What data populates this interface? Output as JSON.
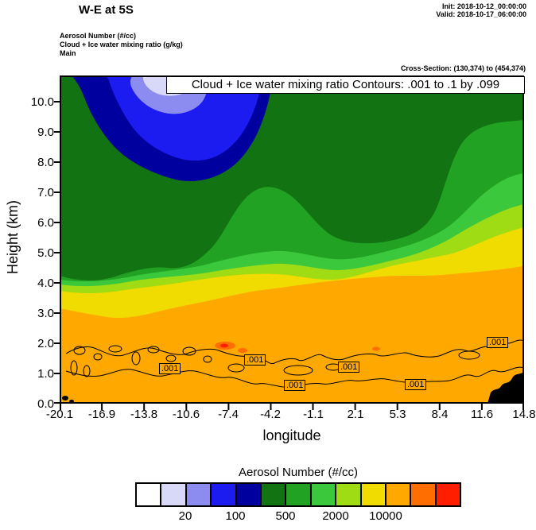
{
  "header": {
    "title": "W-E at 5S",
    "init": "Init: 2018-10-12_00:00:00",
    "valid": "Valid: 2018-10-17_06:00:00",
    "field1": "Aerosol Number  (#/cc)",
    "field2": "Cloud + Ice water mixing ratio  (g/kg)",
    "field3": "Main",
    "cross_section": "Cross-Section: (130,374) to (454,374)"
  },
  "plot": {
    "banner": "Cloud + Ice water mixing ratio Contours: .001 to .1 by .099",
    "contour_label": ".001"
  },
  "axes": {
    "y": {
      "label": "Height (km)",
      "ticks": [
        "10.0",
        "9.0",
        "8.0",
        "7.0",
        "6.0",
        "5.0",
        "4.0",
        "3.0",
        "2.0",
        "1.0",
        "0.0"
      ]
    },
    "x": {
      "label": "longitude",
      "ticks": [
        "-20.1",
        "-16.9",
        "-13.8",
        "-10.6",
        "-7.4",
        "-4.2",
        "-1.1",
        "2.1",
        "5.3",
        "8.4",
        "11.6",
        "14.8"
      ]
    }
  },
  "legend": {
    "title": "Aerosol Number  (#/cc)",
    "labels": [
      "20",
      "100",
      "500",
      "2000",
      "10000"
    ],
    "colors": [
      "#FFFFFF",
      "#D8D8F8",
      "#8C8CF0",
      "#1C1CF0",
      "#00009E",
      "#117311",
      "#22A222",
      "#3CC83C",
      "#A0DC14",
      "#F0DC00",
      "#FFA800",
      "#FF6E00",
      "#FF1E00"
    ]
  },
  "chart_data": {
    "type": "heatmap",
    "title": "W-E at 5S",
    "subtitle": "Cloud + Ice water mixing ratio Contours: .001 to .1 by .099",
    "shaded_field": "Aerosol Number (#/cc)",
    "contour_field": "Cloud + Ice water mixing ratio (g/kg)",
    "contour_levels": {
      "start": 0.001,
      "end": 0.1,
      "step": 0.099
    },
    "contour_line_label": ".001",
    "xlabel": "longitude",
    "ylabel": "Height (km)",
    "x_ticks": [
      -20.1,
      -16.9,
      -13.8,
      -10.6,
      -7.4,
      -4.2,
      -1.1,
      2.1,
      5.3,
      8.4,
      11.6,
      14.8
    ],
    "y_ticks": [
      0,
      1,
      2,
      3,
      4,
      5,
      6,
      7,
      8,
      9,
      10
    ],
    "xlim": [
      -20.1,
      14.8
    ],
    "ylim": [
      0,
      10.9
    ],
    "colorbar_labels": [
      20,
      100,
      500,
      2000,
      10000
    ],
    "colorbar_colors": [
      "#FFFFFF",
      "#D8D8F8",
      "#8C8CF0",
      "#1C1CF0",
      "#00009E",
      "#117311",
      "#22A222",
      "#3CC83C",
      "#A0DC14",
      "#F0DC00",
      "#FFA800",
      "#FF6E00",
      "#FF1E00"
    ],
    "cross_section": "Cross-Section: (130,374) to (454,374)",
    "init_time": "2018-10-12_00:00:00",
    "valid_time": "2018-10-17_06:00:00",
    "field_structure": "High aerosol (orange) below ~3-5 km, yellow/green transition mid-levels, low aerosol (blue/lavender) aloft upper-left, terrain black at lower right"
  }
}
